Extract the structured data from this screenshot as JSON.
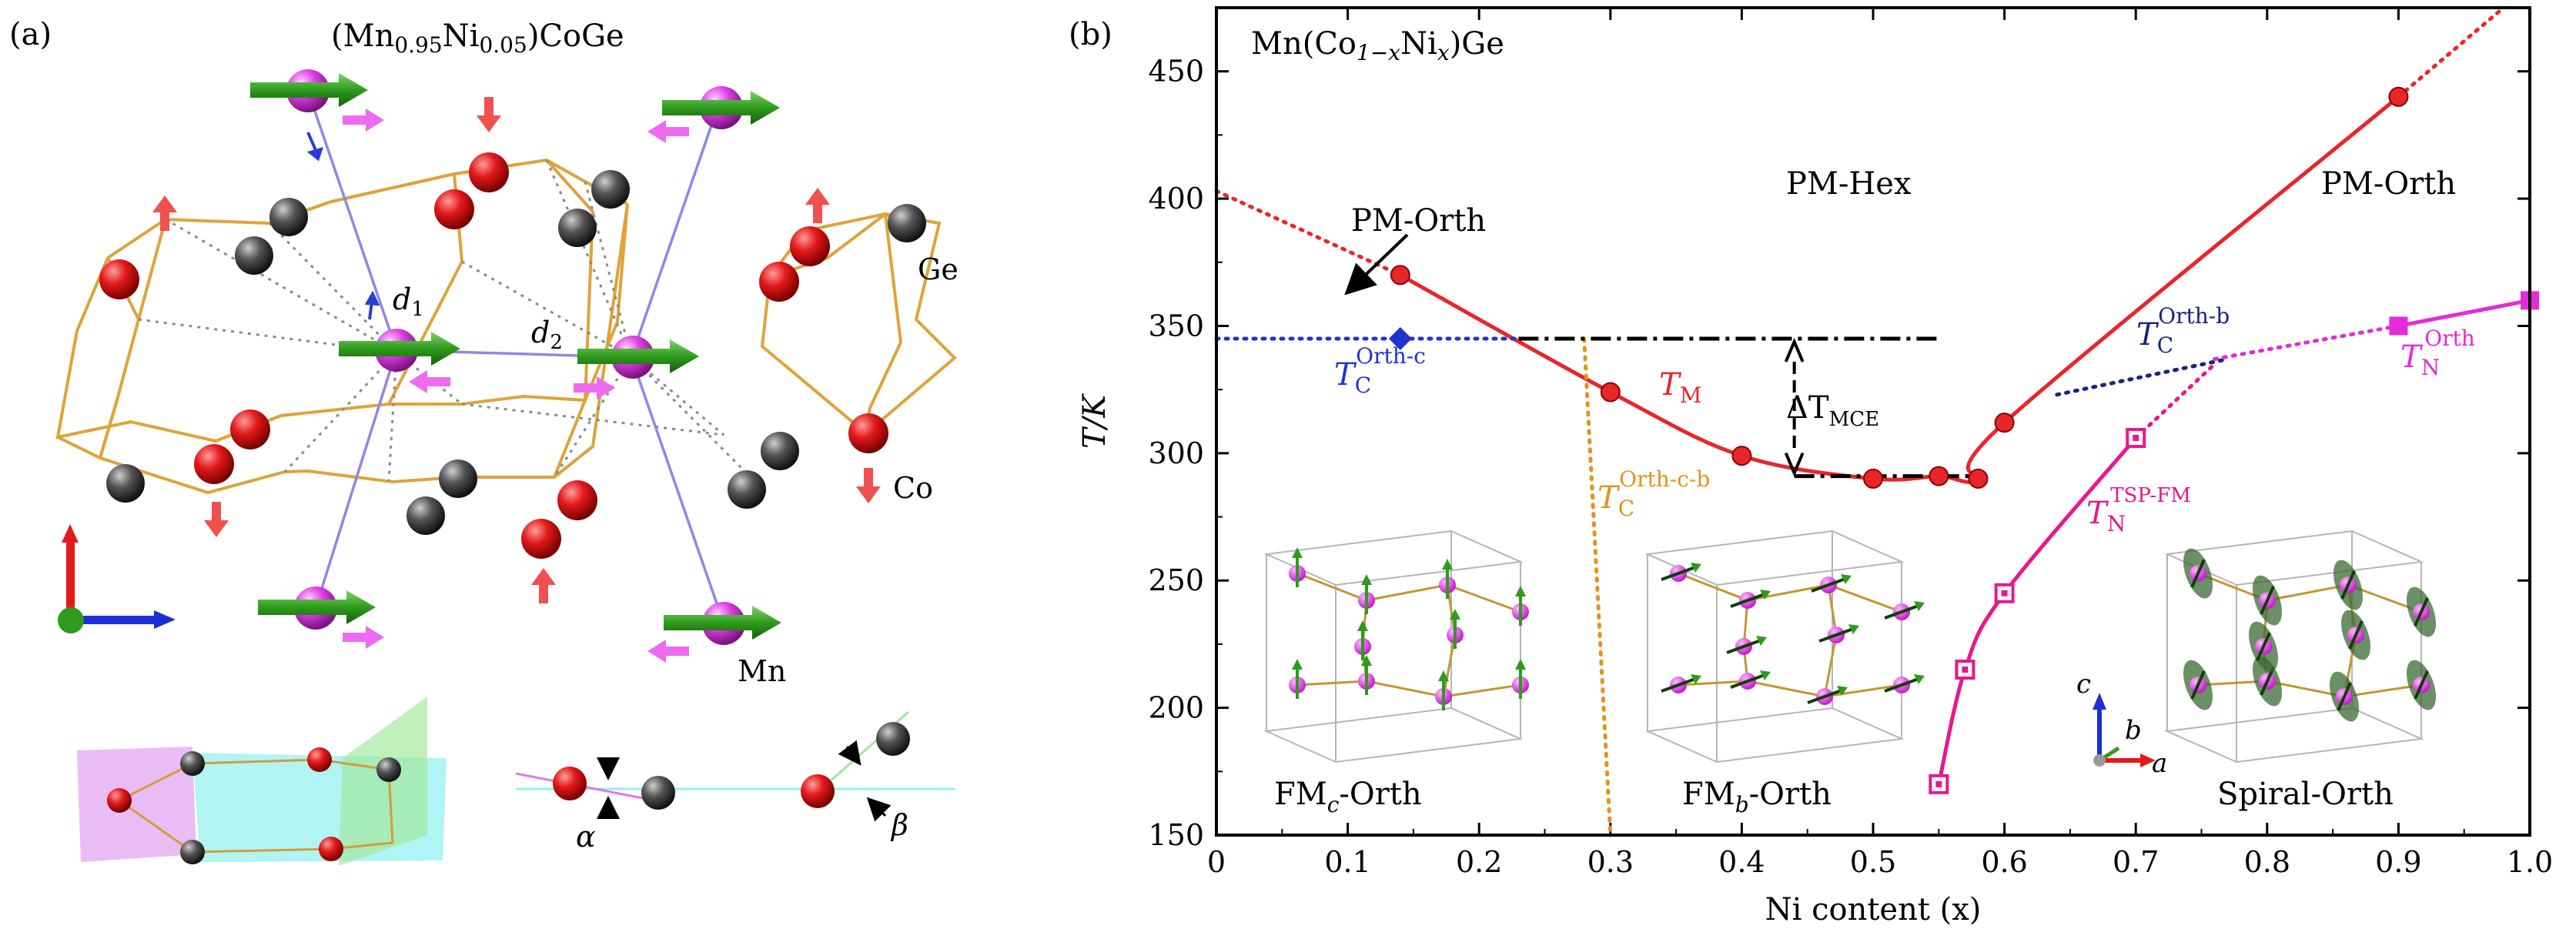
{
  "panel_a": {
    "label": "(a)",
    "title_parts": [
      "(Mn",
      "0.95",
      "Ni",
      "0.05",
      ")CoGe"
    ],
    "labels": {
      "d1": "d",
      "d1_sub": "1",
      "d2": "d",
      "d2_sub": "2",
      "ge": "Ge",
      "co": "Co",
      "mn": "Mn",
      "alpha": "α",
      "beta": "β"
    }
  },
  "panel_b": {
    "label": "(b)",
    "formula_parts": [
      "Mn(Co",
      "1−x",
      "Ni",
      "x",
      ")Ge"
    ],
    "region_labels": {
      "pm_orth_left": "PM-Orth",
      "pm_hex": "PM-Hex",
      "pm_orth_right": "PM-Orth"
    },
    "curve_labels": {
      "TC_orth_c": [
        "T",
        "C",
        "Orth-c"
      ],
      "TM": [
        "T",
        "M"
      ],
      "delta_T": [
        "ΔT",
        "MCE"
      ],
      "TC_orth_cb": [
        "T",
        "C",
        "Orth-c-b"
      ],
      "TC_orth_b": [
        "T",
        "C",
        "Orth-b"
      ],
      "TN_tsp": [
        "T",
        "N",
        "TSP-FM"
      ],
      "TN_orth": [
        "T",
        "N",
        "Orth"
      ]
    },
    "inset_labels": [
      "FM",
      "c",
      "-Orth",
      "FM",
      "b",
      "-Orth",
      "Spiral-Orth"
    ],
    "axes_triad": [
      "c",
      "b",
      "a"
    ],
    "colors": {
      "tm": "#e8262a",
      "tc_orth_c": "#2233cc",
      "tc_orth_cb": "#e8901a",
      "tc_orth_b": "#1a237e",
      "tn": "#e6198c",
      "tn_orth": "#e32bd9",
      "mce": "#000000"
    }
  },
  "chart_data": {
    "type": "line",
    "xlabel": "Ni content (x)",
    "ylabel": "T/K",
    "xlim": [
      0,
      1.0
    ],
    "ylim": [
      150,
      475
    ],
    "xticks": [
      "0",
      "0.1",
      "0.2",
      "0.3",
      "0.4",
      "0.5",
      "0.6",
      "0.7",
      "0.8",
      "0.9",
      "1.0"
    ],
    "yticks": [
      "150",
      "200",
      "250",
      "300",
      "350",
      "400",
      "450"
    ],
    "series": [
      {
        "name": "T_M",
        "style": "solid",
        "marker": "circle",
        "x": [
          0.14,
          0.3,
          0.4,
          0.5,
          0.55,
          0.58,
          0.6,
          0.9
        ],
        "y": [
          370,
          324,
          299,
          290,
          291,
          290,
          312,
          440
        ]
      },
      {
        "name": "T_M extrapolation left",
        "style": "dotted",
        "x": [
          0.0,
          0.14
        ],
        "y": [
          403,
          370
        ]
      },
      {
        "name": "T_M extrapolation right",
        "style": "dotted",
        "x": [
          0.9,
          0.98
        ],
        "y": [
          440,
          475
        ]
      },
      {
        "name": "T_C^Orth-c",
        "style": "dotted",
        "marker": "diamond",
        "x": [
          0.0,
          0.14,
          0.23
        ],
        "y": [
          345,
          345,
          345
        ]
      },
      {
        "name": "T_C^Orth-c-b",
        "style": "dotted",
        "x": [
          0.28,
          0.3
        ],
        "y": [
          345,
          150
        ]
      },
      {
        "name": "T_N^TSP-FM",
        "style": "solid",
        "marker": "square",
        "x": [
          0.55,
          0.57,
          0.6,
          0.7
        ],
        "y": [
          170,
          215,
          245,
          306
        ]
      },
      {
        "name": "T_N^TSP-FM extrapolation",
        "style": "dotted",
        "x": [
          0.7,
          0.76
        ],
        "y": [
          306,
          335
        ]
      },
      {
        "name": "T_C^Orth-b",
        "style": "dotted",
        "x": [
          0.64,
          0.77
        ],
        "y": [
          323,
          337
        ]
      },
      {
        "name": "T_N^Orth",
        "style": "solid",
        "marker": "square",
        "x": [
          0.9,
          1.0
        ],
        "y": [
          350,
          360
        ]
      },
      {
        "name": "T_N^Orth extrapolation",
        "style": "dotted",
        "x": [
          0.76,
          0.9
        ],
        "y": [
          337,
          350
        ]
      },
      {
        "name": "MCE window",
        "style": "dash-dot",
        "x": [
          0.23,
          0.55
        ],
        "y": [
          345,
          345
        ]
      },
      {
        "name": "MCE window lower",
        "style": "dash-dot",
        "x": [
          0.44,
          0.58
        ],
        "y": [
          291,
          291
        ]
      }
    ],
    "annotations": [
      {
        "text": "ΔT_MCE",
        "x": 0.44,
        "y1": 291,
        "y2": 345
      }
    ]
  }
}
